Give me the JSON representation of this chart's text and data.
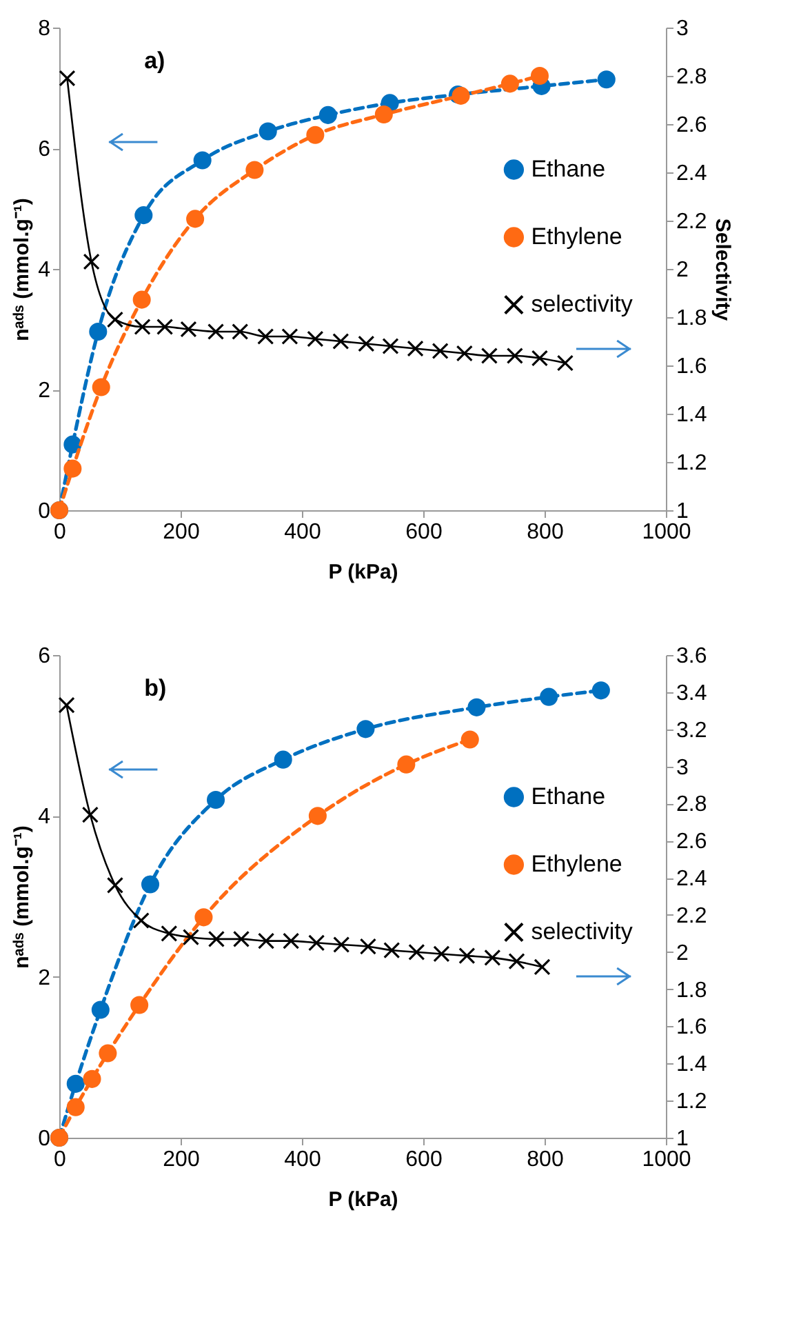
{
  "chart_data": [
    {
      "type": "line",
      "annotations": [
        "a)"
      ],
      "xlabel": "P (kPa)",
      "ylabel": "nᵃᵈˢ (mmol.g⁻¹)",
      "y2label": "Selectivity",
      "xlim": [
        0,
        1000
      ],
      "xticks": [
        0,
        200,
        400,
        600,
        800,
        1000
      ],
      "ylim": [
        0,
        8
      ],
      "yticks": [
        0,
        2,
        4,
        6,
        8
      ],
      "y2lim": [
        1,
        3
      ],
      "y2ticks": [
        1,
        1.2,
        1.4,
        1.6,
        1.8,
        2,
        2.2,
        2.4,
        2.6,
        2.8,
        3
      ],
      "legend": "right",
      "grid": false,
      "series": [
        {
          "name": "Ethane",
          "color": "#0070c0",
          "marker": "circle",
          "line_style": "dashed",
          "x": [
            0,
            22,
            64,
            139,
            236,
            344,
            443,
            545,
            657,
            795,
            902
          ],
          "values": [
            0,
            1.09,
            2.96,
            4.89,
            5.8,
            6.28,
            6.55,
            6.75,
            6.89,
            7.03,
            7.14
          ]
        },
        {
          "name": "Ethylene",
          "color": "#ff6a13",
          "marker": "circle",
          "line_style": "dashed",
          "x": [
            0,
            22,
            69,
            136,
            224,
            322,
            422,
            535,
            662,
            743,
            792
          ],
          "values": [
            0,
            0.69,
            2.04,
            3.49,
            4.83,
            5.64,
            6.22,
            6.56,
            6.87,
            7.07,
            7.2
          ]
        },
        {
          "name": "selectivity",
          "color": "#000000",
          "marker": "cross",
          "line_style": "solid",
          "axis": "y2",
          "x": [
            13,
            53,
            92,
            137,
            174,
            213,
            258,
            298,
            340,
            380,
            422,
            464,
            506,
            546,
            587,
            628,
            668,
            709,
            751,
            792,
            834
          ],
          "values": [
            2.79,
            2.03,
            1.79,
            1.76,
            1.76,
            1.75,
            1.74,
            1.74,
            1.72,
            1.72,
            1.71,
            1.7,
            1.69,
            1.68,
            1.67,
            1.66,
            1.65,
            1.64,
            1.64,
            1.63,
            1.61
          ]
        }
      ]
    },
    {
      "type": "line",
      "annotations": [
        "b)"
      ],
      "xlabel": "P (kPa)",
      "ylabel": "nᵃᵈˢ (mmol.g⁻¹)",
      "xlim": [
        0,
        1000
      ],
      "xticks": [
        0,
        200,
        400,
        600,
        800,
        1000
      ],
      "ylim": [
        0,
        6
      ],
      "yticks": [
        0,
        2,
        4,
        6
      ],
      "y2lim": [
        1,
        3.6
      ],
      "y2ticks": [
        1,
        1.2,
        1.4,
        1.6,
        1.8,
        2,
        2.2,
        2.4,
        2.6,
        2.8,
        3,
        3.2,
        3.4,
        3.6
      ],
      "legend": "right",
      "grid": false,
      "series": [
        {
          "name": "Ethane",
          "color": "#0070c0",
          "marker": "circle",
          "line_style": "dashed",
          "x": [
            0,
            27,
            68,
            150,
            258,
            369,
            505,
            688,
            807,
            893
          ],
          "values": [
            0,
            0.67,
            1.59,
            3.15,
            4.2,
            4.7,
            5.08,
            5.35,
            5.48,
            5.56
          ]
        },
        {
          "name": "Ethylene",
          "color": "#ff6a13",
          "marker": "circle",
          "line_style": "dashed",
          "x": [
            0,
            27,
            54,
            80,
            132,
            238,
            426,
            572,
            677
          ],
          "values": [
            0,
            0.38,
            0.73,
            1.05,
            1.65,
            2.74,
            4,
            4.64,
            4.95
          ]
        },
        {
          "name": "selectivity",
          "color": "#000000",
          "marker": "cross",
          "line_style": "solid",
          "axis": "y2",
          "x": [
            12,
            51,
            92,
            135,
            181,
            217,
            259,
            300,
            341,
            382,
            424,
            465,
            509,
            548,
            589,
            630,
            672,
            714,
            754,
            796
          ],
          "values": [
            3.33,
            2.74,
            2.36,
            2.17,
            2.1,
            2.08,
            2.07,
            2.07,
            2.06,
            2.06,
            2.05,
            2.04,
            2.03,
            2.01,
            2,
            1.99,
            1.98,
            1.97,
            1.95,
            1.92
          ]
        }
      ]
    }
  ]
}
